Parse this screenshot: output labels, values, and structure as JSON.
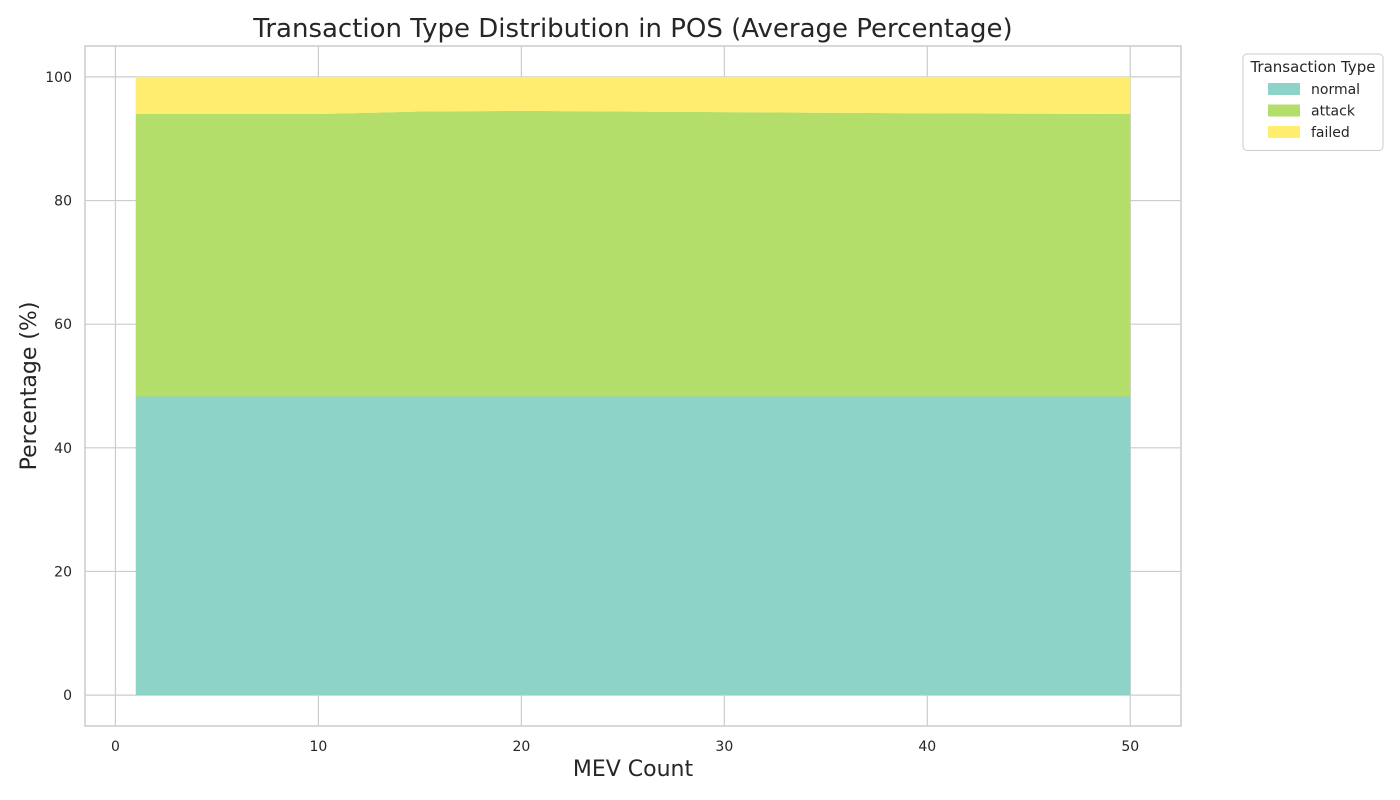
{
  "chart_data": {
    "type": "area",
    "stacked": true,
    "title": "Transaction Type Distribution in POS (Average Percentage)",
    "xlabel": "MEV Count",
    "ylabel": "Percentage (%)",
    "xlim": [
      -1.5,
      52.5
    ],
    "ylim": [
      -5,
      105
    ],
    "xticks": [
      0,
      10,
      20,
      30,
      40,
      50
    ],
    "yticks": [
      0,
      20,
      40,
      60,
      80,
      100
    ],
    "grid": true,
    "legend": {
      "title": "Transaction Type",
      "placement": "outside top-right"
    },
    "x": [
      1,
      10,
      15,
      20,
      30,
      40,
      50
    ],
    "series": [
      {
        "name": "normal",
        "color": "#8dd3c7",
        "values": [
          48.3,
          48.3,
          48.3,
          48.3,
          48.3,
          48.3,
          48.3
        ]
      },
      {
        "name": "attack",
        "color": "#b3de69",
        "values": [
          45.7,
          45.7,
          46.1,
          46.2,
          46.0,
          45.8,
          45.7
        ]
      },
      {
        "name": "failed",
        "color": "#ffed6f",
        "values": [
          6.0,
          6.0,
          5.6,
          5.5,
          5.7,
          5.9,
          6.0
        ]
      }
    ]
  }
}
